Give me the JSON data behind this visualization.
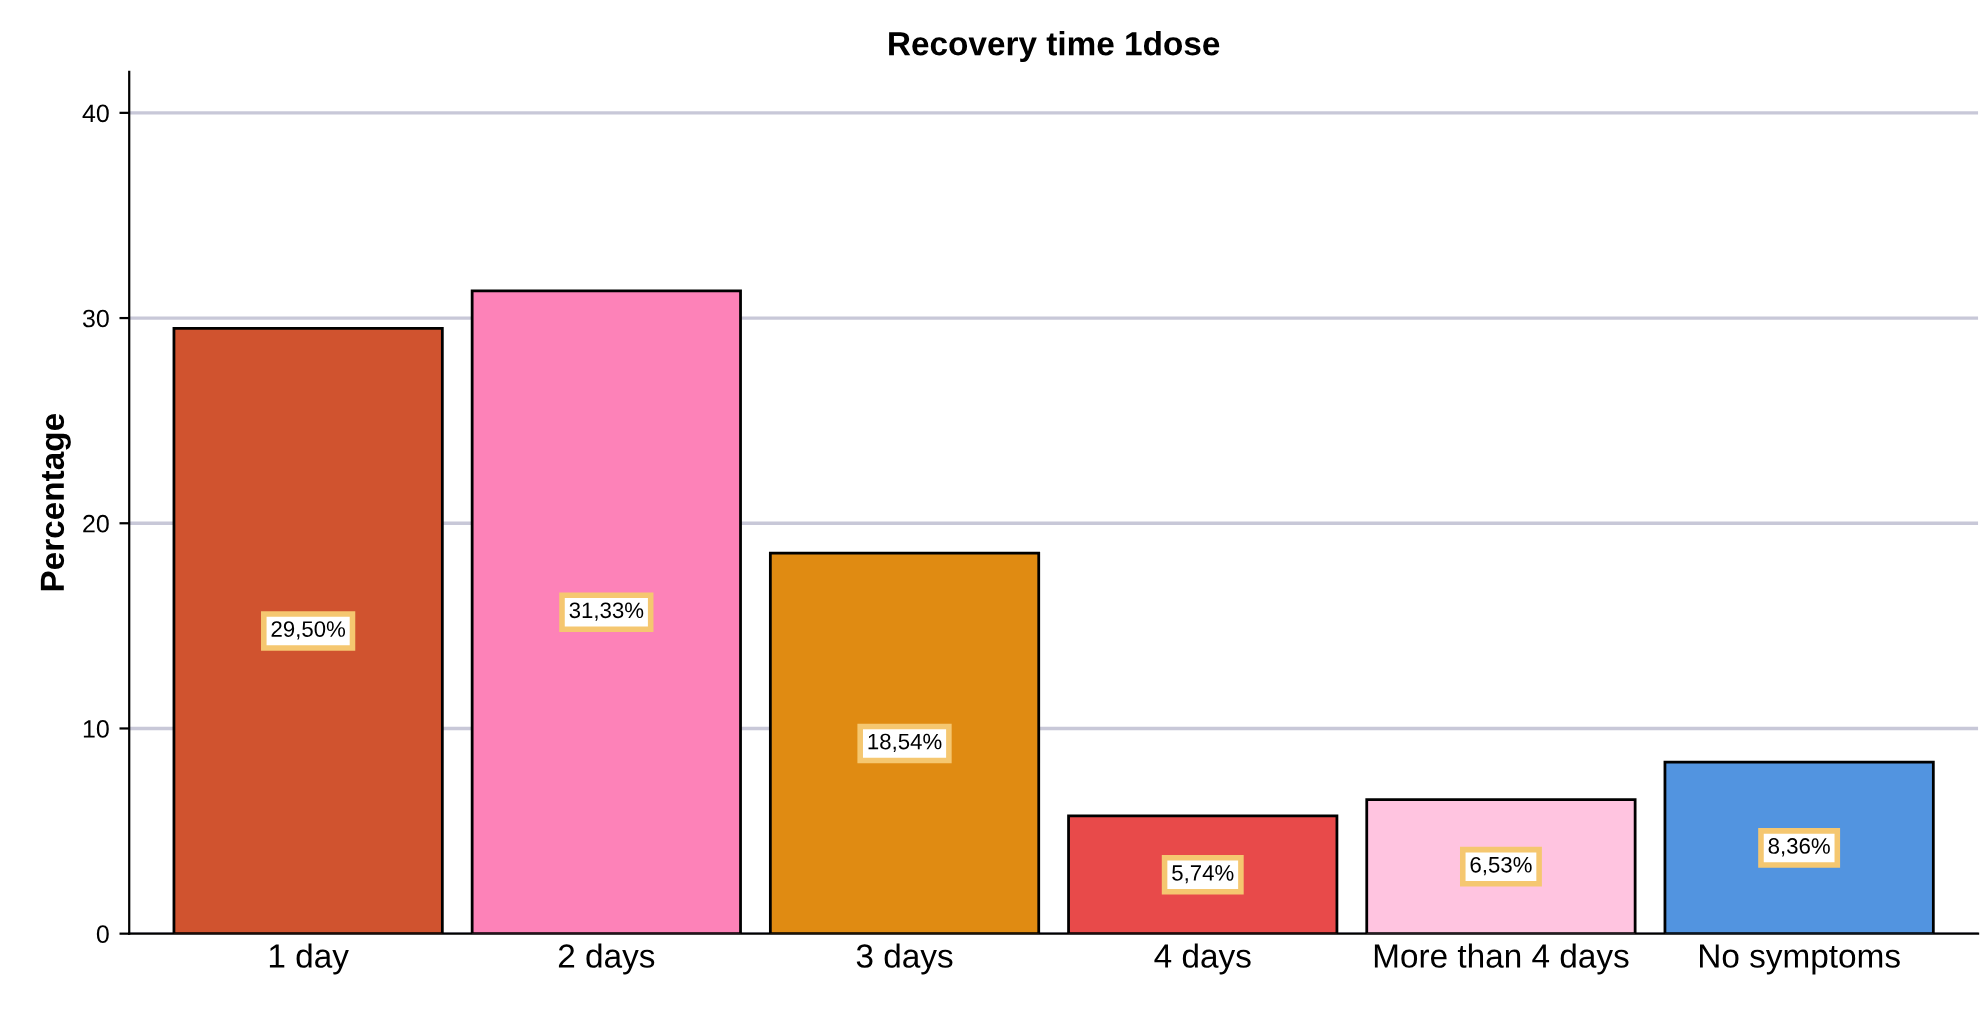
{
  "chart_data": {
    "type": "bar",
    "title": "Recovery time 1dose",
    "ylabel": "Percentage",
    "categories": [
      "1 day",
      "2 days",
      "3 days",
      "4 days",
      "More than 4 days",
      "No symptoms"
    ],
    "values": [
      29.5,
      31.33,
      18.54,
      5.74,
      6.53,
      8.36
    ],
    "value_labels": [
      "29,50%",
      "31,33%",
      "18,54%",
      "5,74%",
      "6,53%",
      "8,36%"
    ],
    "colors": [
      "#d0532f",
      "#fd82b8",
      "#e08b12",
      "#e84a4a",
      "#ffc4e0",
      "#5294e0"
    ],
    "ylim": [
      0,
      42
    ],
    "yticks": [
      0,
      10,
      20,
      30,
      40
    ],
    "grid": "y",
    "legend": false
  }
}
